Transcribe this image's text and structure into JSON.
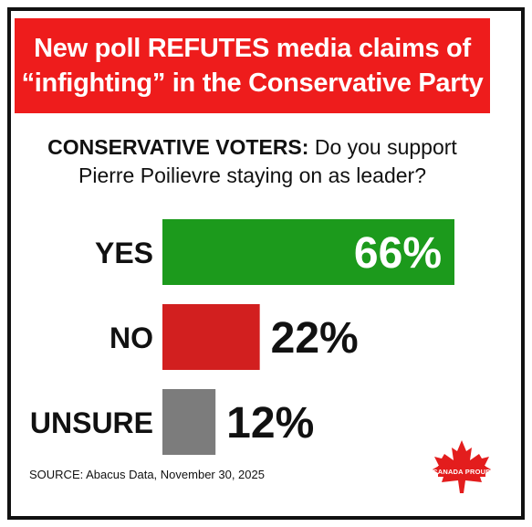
{
  "banner": {
    "line1": "New poll REFUTES media claims of",
    "line2": "“infighting” in the Conservative Party"
  },
  "question": {
    "prefix": "CONSERVATIVE VOTERS:",
    "text": " Do you support",
    "line2": "Pierre Poilievre staying on as leader?"
  },
  "chart_data": {
    "type": "bar",
    "orientation": "horizontal",
    "categories": [
      "YES",
      "NO",
      "UNSURE"
    ],
    "values": [
      66,
      22,
      12
    ],
    "value_labels": [
      "66%",
      "22%",
      "12%"
    ],
    "colors": [
      "#1c9a1c",
      "#d21f1f",
      "#7c7c7c"
    ],
    "xlim": [
      0,
      66
    ],
    "title": "",
    "xlabel": "",
    "ylabel": ""
  },
  "source": "SOURCE: Abacus Data, November 30, 2025",
  "logo": {
    "icon": "maple-leaf-icon",
    "text": "CANADA PROUD",
    "color": "#e31d1d"
  }
}
